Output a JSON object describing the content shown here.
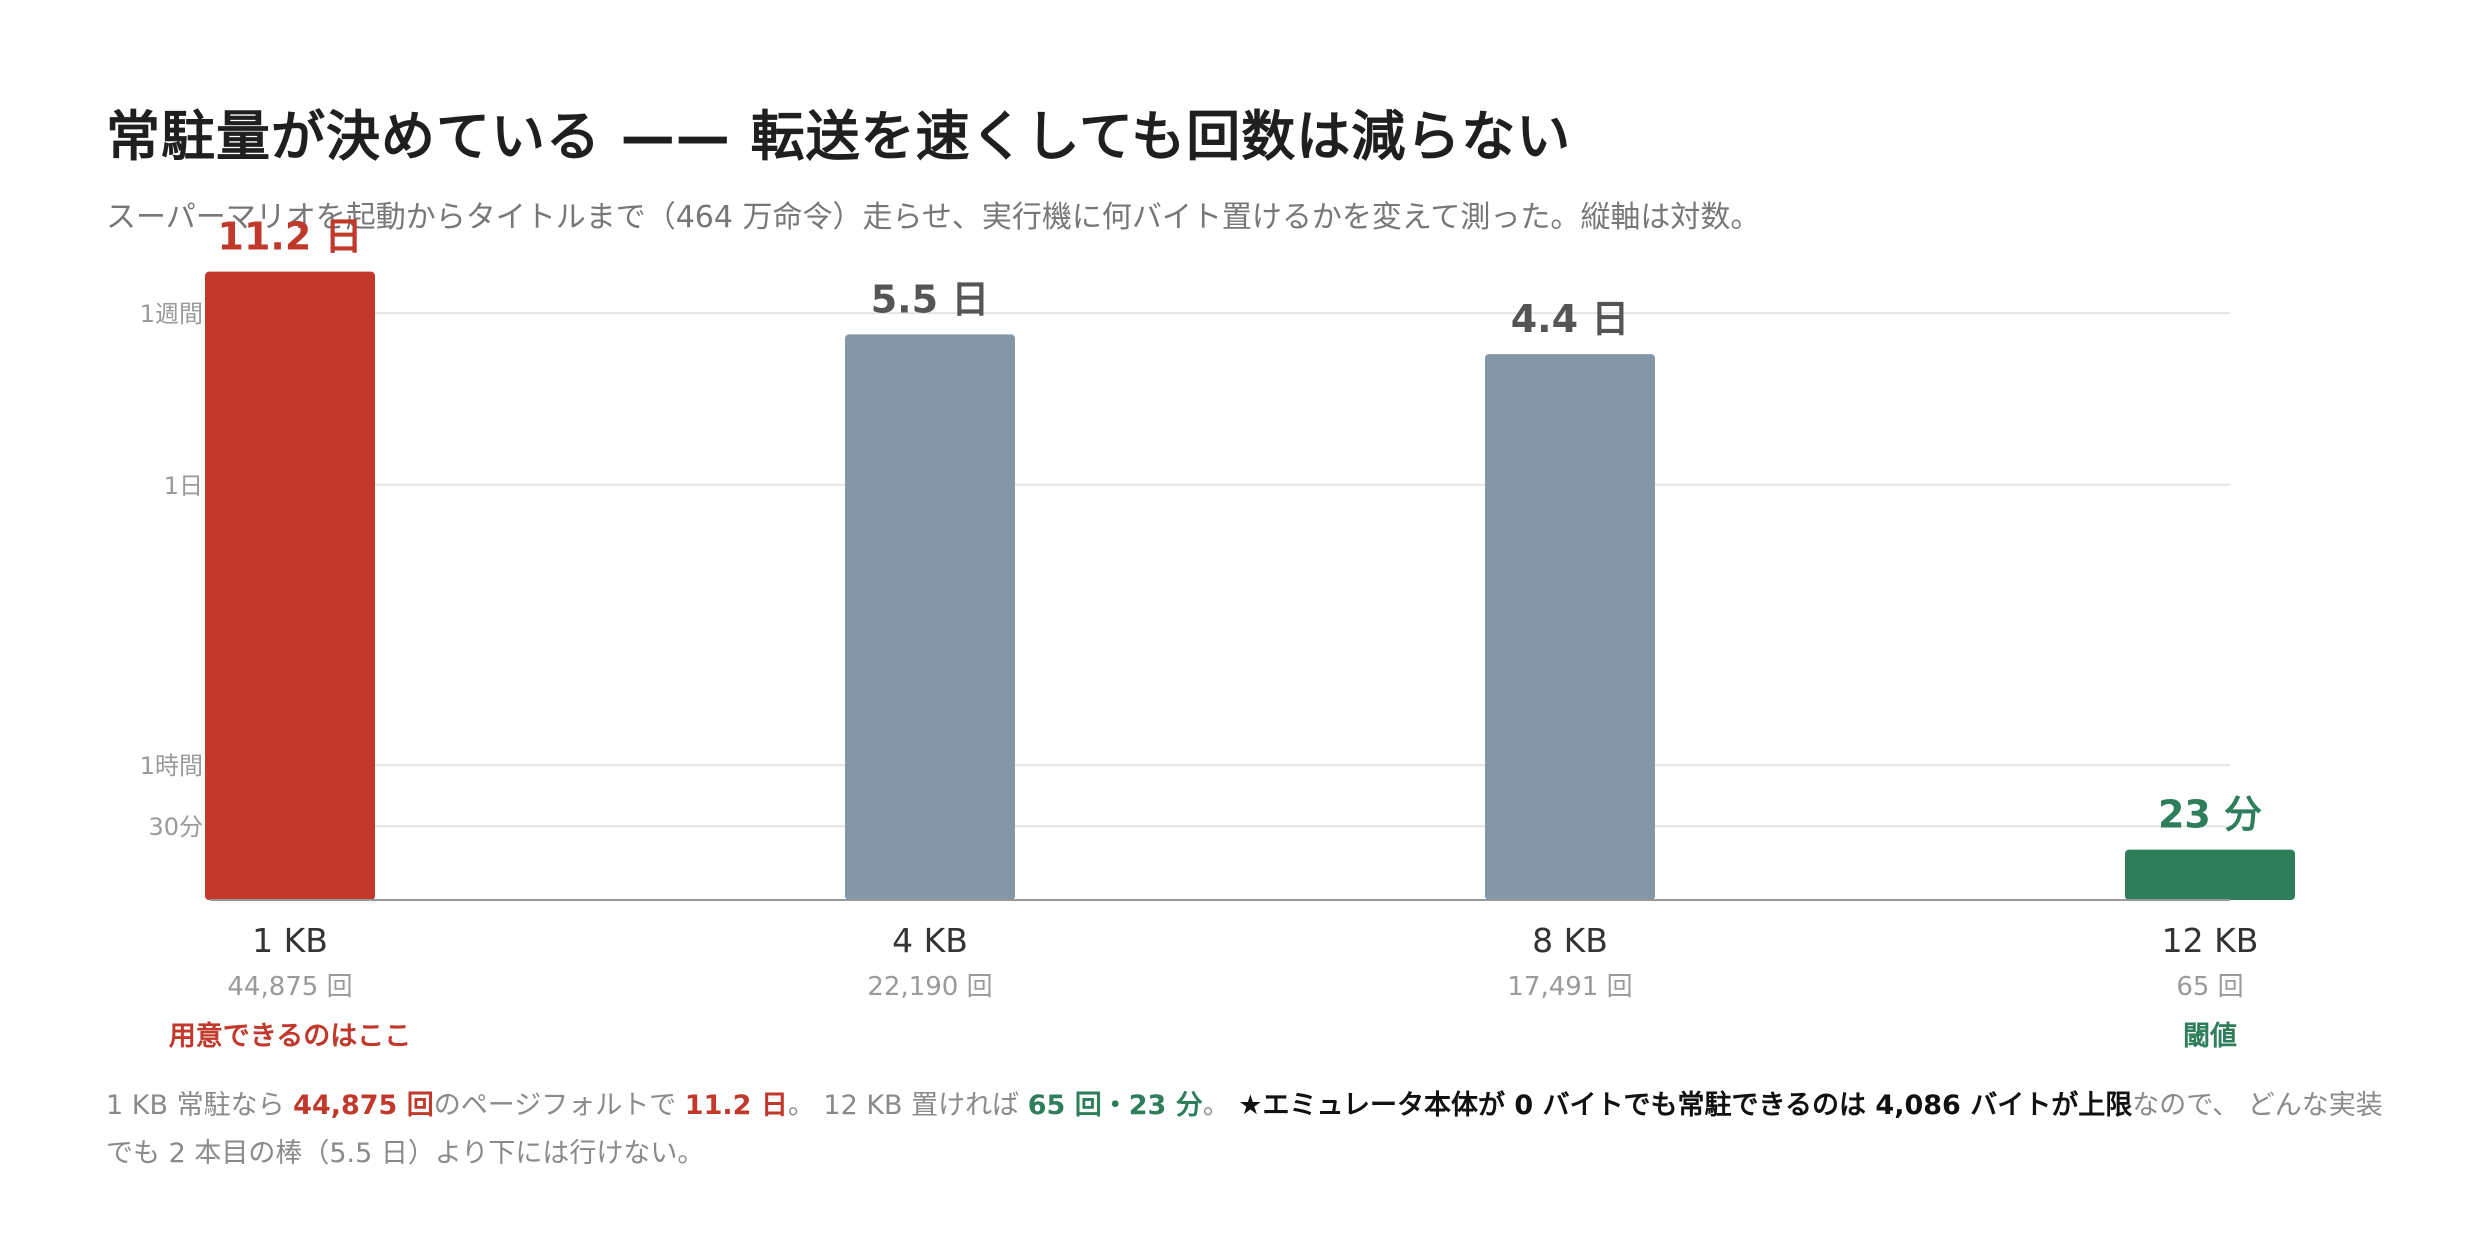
{
  "title": "常駐量が決めている —— 転送を速くしても回数は減らない",
  "subtitle": "スーパーマリオを起動からタイトルまで（464 万命令）走らせ、実行機に何バイト置けるかを変えて測った。縦軸は対数。",
  "chart_data": {
    "type": "bar",
    "y_scale": "log",
    "y_unit": "minutes",
    "y_range_minutes": [
      13,
      20160
    ],
    "y_ticks": [
      {
        "label": "30分",
        "minutes": 30
      },
      {
        "label": "1時間",
        "minutes": 60
      },
      {
        "label": "1日",
        "minutes": 1440
      },
      {
        "label": "1週間",
        "minutes": 10080
      }
    ],
    "grid": true,
    "bars": [
      {
        "category": "1 KB",
        "count_label": "44,875 回",
        "value_minutes": 16128,
        "value_label": "11.2 日",
        "color": "#c0392b",
        "label_color": "#c0392b",
        "note": "用意できるのはここ",
        "note_color": "#c0392b"
      },
      {
        "category": "4 KB",
        "count_label": "22,190 回",
        "value_minutes": 7920,
        "value_label": "5.5 日",
        "color": "#8596a8",
        "label_color": "#555555",
        "note": "",
        "note_color": ""
      },
      {
        "category": "8 KB",
        "count_label": "17,491 回",
        "value_minutes": 6336,
        "value_label": "4.4 日",
        "color": "#8596a8",
        "label_color": "#555555",
        "note": "",
        "note_color": ""
      },
      {
        "category": "12 KB",
        "count_label": "65 回",
        "value_minutes": 23,
        "value_label": "23 分",
        "color": "#2e7d5b",
        "label_color": "#2e7d5b",
        "note": "閾値",
        "note_color": "#2e7d5b"
      }
    ]
  },
  "footnote": {
    "p1": "1 KB 常駐なら ",
    "p2": "44,875 回",
    "p3": "のページフォルトで ",
    "p4": "11.2 日",
    "p5": "。 12 KB 置ければ ",
    "p6": "65 回・23 分",
    "p7": "。 ",
    "p8": "★エミュレータ本体が 0 バイトでも常駐できるのは 4,086 バイトが上限",
    "p9": "なので、 どんな実装でも 2 本目の棒（5.5 日）より下には行けない。"
  }
}
